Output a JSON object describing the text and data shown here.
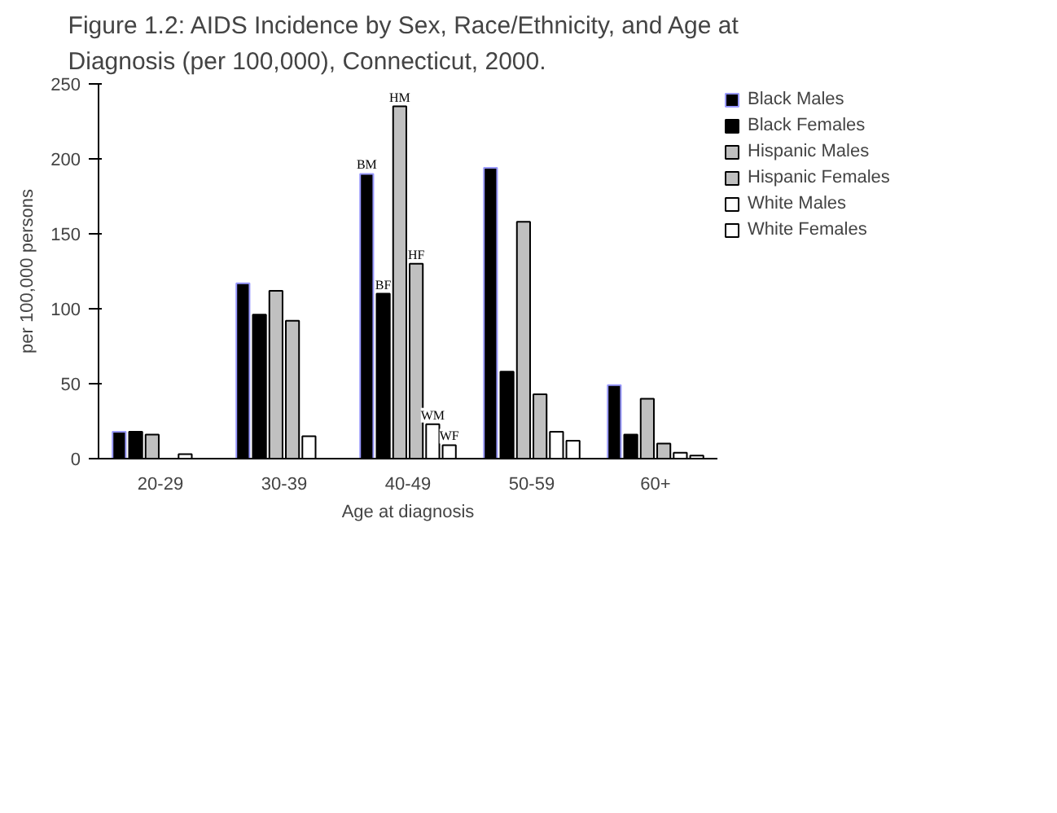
{
  "chart_data": {
    "type": "bar",
    "title": "Figure 1.2:  AIDS Incidence by Sex, Race/Ethnicity, and Age at Diagnosis (per 100,000), Connecticut, 2000.",
    "xlabel": "Age at diagnosis",
    "ylabel": "per 100,000 persons",
    "categories": [
      "20-29",
      "30-39",
      "40-49",
      "50-59",
      "60+"
    ],
    "series": [
      {
        "name": "Black Males",
        "color": "#000000",
        "values": [
          18,
          117,
          190,
          194,
          49
        ]
      },
      {
        "name": "Black Females",
        "color": "#000000",
        "values": [
          18,
          96,
          110,
          58,
          16
        ]
      },
      {
        "name": "Hispanic Males",
        "color": "#c0c0c0",
        "values": [
          16,
          112,
          235,
          158,
          40
        ]
      },
      {
        "name": "Hispanic Females",
        "color": "#c0c0c0",
        "values": [
          null,
          92,
          130,
          43,
          10
        ]
      },
      {
        "name": "White Males",
        "color": "#ffffff",
        "values": [
          3,
          15,
          23,
          18,
          4
        ]
      },
      {
        "name": "White Females",
        "color": "#ffffff",
        "values": [
          null,
          null,
          9,
          12,
          2
        ]
      }
    ],
    "annotations": [
      {
        "text": "BM",
        "x": "40-49",
        "y": 190
      },
      {
        "text": "BF",
        "x": "40-49",
        "y": 110
      },
      {
        "text": "HM",
        "x": "40-49",
        "y": 235
      },
      {
        "text": "HF",
        "x": "40-49",
        "y": 130
      },
      {
        "text": "WM",
        "x": "40-49",
        "y": 23
      },
      {
        "text": "WF",
        "x": "40-49",
        "y": 9
      }
    ],
    "ylim": [
      0,
      250
    ],
    "yticks": [
      0,
      50,
      100,
      150,
      200,
      250
    ],
    "legend": "right"
  }
}
